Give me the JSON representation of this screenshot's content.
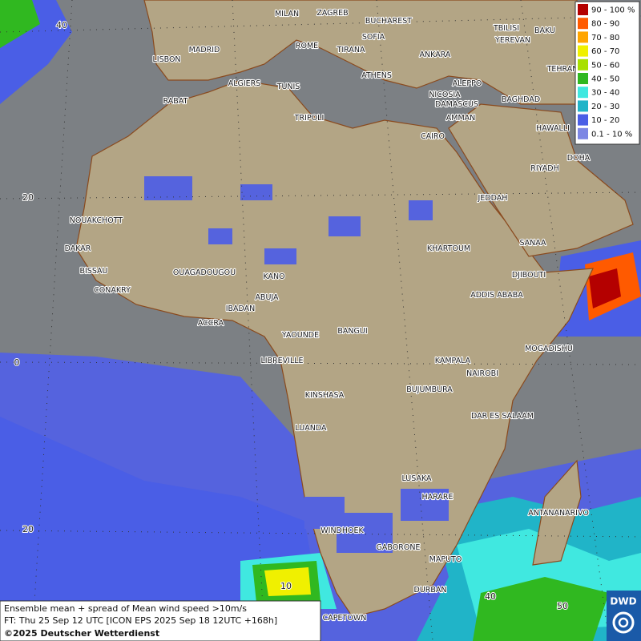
{
  "legend": {
    "items": [
      {
        "label": "90 - 100 %",
        "color": "#b40000"
      },
      {
        "label": "80 - 90",
        "color": "#ff5a00"
      },
      {
        "label": "70 - 80",
        "color": "#ffa500"
      },
      {
        "label": "60 - 70",
        "color": "#f0f000"
      },
      {
        "label": "50 - 60",
        "color": "#a8e000"
      },
      {
        "label": "40 - 50",
        "color": "#30b820"
      },
      {
        "label": "30 - 40",
        "color": "#40e8e0"
      },
      {
        "label": "20 - 30",
        "color": "#20b4c8"
      },
      {
        "label": "10 - 20",
        "color": "#4a5ee6"
      },
      {
        "label": "0.1 - 10 %",
        "color": "#7c86e4"
      }
    ]
  },
  "cities": [
    "MILAN",
    "ZAGREB",
    "BUCHAREST",
    "TBILISI",
    "BAKU",
    "SOFIA",
    "YEREVAN",
    "MADRID",
    "ROME",
    "TIRANA",
    "ANKARA",
    "TEHRAN",
    "LISBON",
    "ATHENS",
    "ALEPPO",
    "ALGIERS",
    "TUNIS",
    "NICOSIA",
    "RABAT",
    "BAGHDAD",
    "DAMASCUS",
    "TRIPOLI",
    "AMMAN",
    "HAWALLI",
    "CAIRO",
    "DOHA",
    "RIYADH",
    "JEDDAH",
    "NOUAKCHOTT",
    "SANAA",
    "DAKAR",
    "KHARTOUM",
    "BISSAU",
    "OUAGADOUGOU",
    "DJIBOUTI",
    "KANO",
    "CONAKRY",
    "ABUJA",
    "ADDIS ABABA",
    "IBADAN",
    "ACCRA",
    "YAOUNDE",
    "BANGUI",
    "LIBREVILLE",
    "MOGADISHU",
    "KAMPALA",
    "NAIROBI",
    "KINSHASA",
    "BUJUMBURA",
    "DAR ES SALAAM",
    "LUANDA",
    "LUSAKA",
    "HARARE",
    "ANTANANARIVO",
    "WINDHOEK",
    "GABORONE",
    "MAPUTO",
    "DURBAN",
    "CAPETOWN"
  ],
  "grid_labels": [
    "40",
    "20",
    "0",
    "20",
    "10",
    "40",
    "50"
  ],
  "footer": {
    "line1": "Ensemble mean + spread of Mean wind speed >10m/s",
    "line2": "FT: Thu 25 Sep 12 UTC [ICON EPS 2025 Sep 18 12UTC +168h]",
    "line3": "©2025 Deutscher Wetterdienst"
  },
  "logo": "DWD"
}
